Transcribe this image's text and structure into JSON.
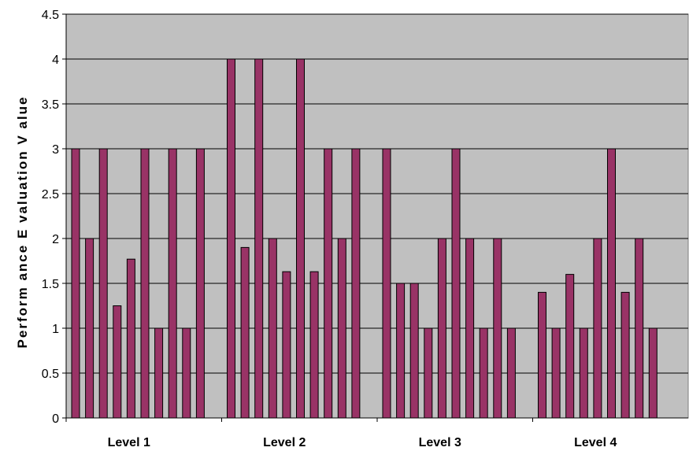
{
  "chart_data": {
    "type": "bar",
    "ylabel": "Perform ance  E valuation  V alue",
    "ylim": [
      0,
      4.5
    ],
    "y_ticks": [
      "0",
      "0.5",
      "1",
      "1.5",
      "2",
      "2.5",
      "3",
      "3.5",
      "4",
      "4.5"
    ],
    "grid": true,
    "plot_background": "#C0C0C0",
    "bar_color": "#993366",
    "groups": [
      {
        "label": "Level 1",
        "values": [
          3,
          2,
          3,
          1.25,
          1.77,
          3,
          1,
          3,
          1,
          3
        ]
      },
      {
        "label": "Level 2",
        "values": [
          4,
          1.9,
          4,
          2,
          1.63,
          4,
          1.63,
          3,
          2,
          3
        ]
      },
      {
        "label": "Level 3",
        "values": [
          3,
          1.5,
          1.5,
          1,
          2,
          3,
          2,
          1,
          2,
          1
        ]
      },
      {
        "label": "Level 4",
        "values": [
          1.4,
          1,
          1.6,
          1,
          2,
          3,
          1.4,
          2,
          1
        ]
      }
    ]
  }
}
